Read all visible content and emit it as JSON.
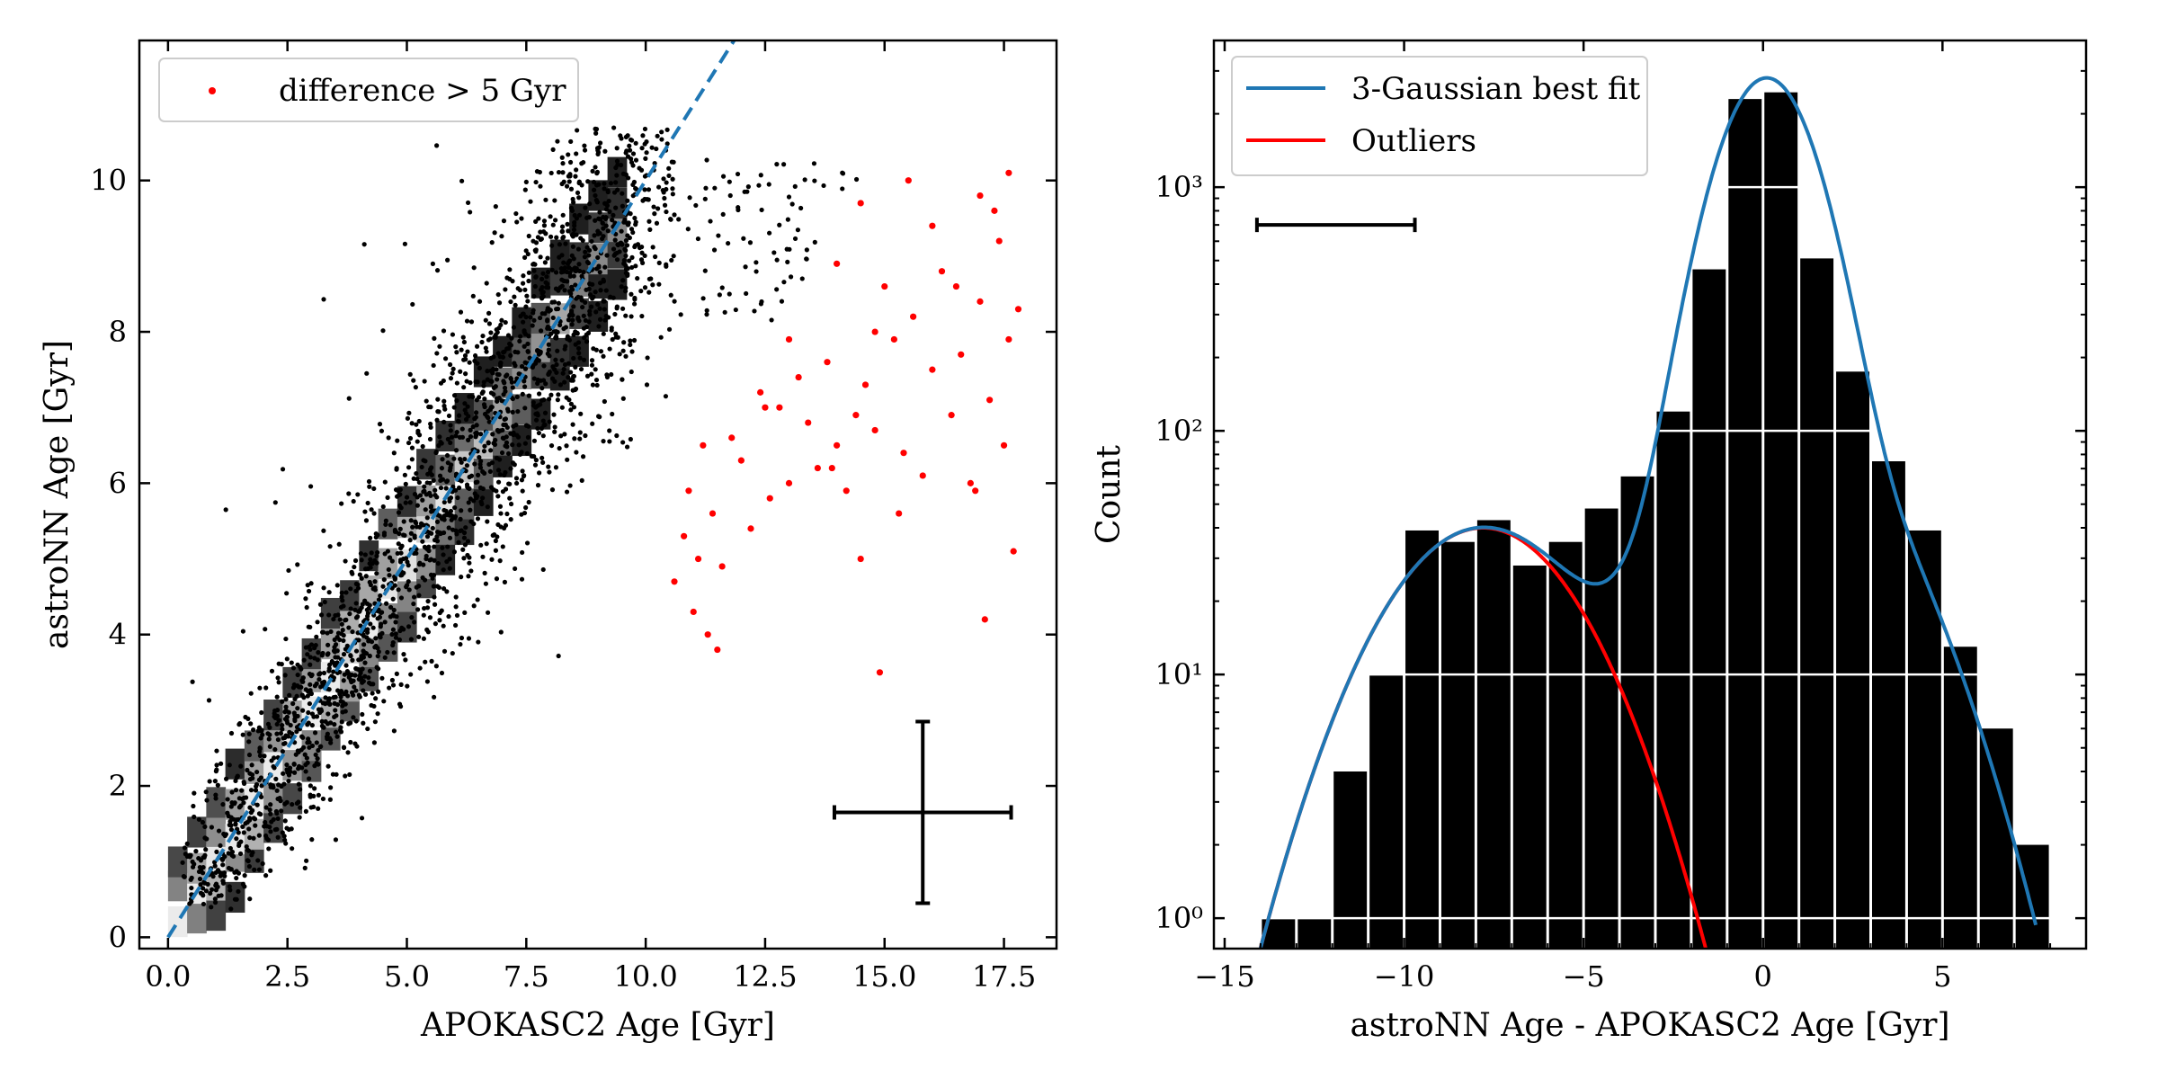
{
  "chart_data": [
    {
      "type": "scatter",
      "xlabel": "APOKASC2 Age [Gyr]",
      "ylabel": "astroNN Age [Gyr]",
      "xlim": [
        -0.6,
        18.6
      ],
      "ylim": [
        -0.15,
        11.85
      ],
      "xticks": [
        0,
        2.5,
        5,
        7.5,
        10,
        12.5,
        15,
        17.5
      ],
      "xtick_labels": [
        "0.0",
        "2.5",
        "5.0",
        "7.5",
        "10.0",
        "12.5",
        "15.0",
        "17.5"
      ],
      "yticks": [
        0,
        2,
        4,
        6,
        8,
        10
      ],
      "ytick_labels": [
        "0",
        "2",
        "4",
        "6",
        "8",
        "10"
      ],
      "grid": false,
      "legend": {
        "location": "upper left",
        "entries": [
          {
            "label": "difference > 5 Gyr",
            "color": "#ff0000",
            "marker": "dot"
          }
        ]
      },
      "one_to_one_line": {
        "style": "dashed",
        "color": "#1f77b4",
        "from": [
          0,
          0
        ],
        "to": [
          12,
          12
        ]
      },
      "density_histogram": {
        "color_scale": "grayscale",
        "bin_size": 0.4,
        "span": [
          0.2,
          9.8
        ]
      },
      "series": [
        {
          "name": "difference > 5 Gyr",
          "color": "#ff0000",
          "points": [
            [
              10.6,
              4.7
            ],
            [
              10.8,
              5.3
            ],
            [
              10.9,
              5.9
            ],
            [
              11.0,
              4.3
            ],
            [
              11.1,
              5.0
            ],
            [
              11.2,
              6.5
            ],
            [
              11.3,
              4.0
            ],
            [
              11.4,
              5.6
            ],
            [
              11.5,
              3.8
            ],
            [
              11.6,
              4.9
            ],
            [
              11.8,
              6.6
            ],
            [
              12.0,
              6.3
            ],
            [
              12.2,
              5.4
            ],
            [
              12.4,
              7.2
            ],
            [
              12.6,
              5.8
            ],
            [
              12.8,
              7.0
            ],
            [
              13.0,
              6.0
            ],
            [
              13.2,
              7.4
            ],
            [
              13.4,
              6.8
            ],
            [
              13.6,
              6.2
            ],
            [
              13.8,
              7.6
            ],
            [
              14.0,
              6.5
            ],
            [
              14.2,
              5.9
            ],
            [
              14.4,
              6.9
            ],
            [
              14.5,
              5.0
            ],
            [
              14.6,
              7.3
            ],
            [
              14.8,
              6.7
            ],
            [
              14.9,
              3.5
            ],
            [
              15.0,
              8.6
            ],
            [
              15.2,
              7.9
            ],
            [
              15.4,
              6.4
            ],
            [
              15.6,
              8.2
            ],
            [
              15.8,
              6.1
            ],
            [
              16.0,
              7.5
            ],
            [
              16.2,
              8.8
            ],
            [
              16.4,
              6.9
            ],
            [
              16.6,
              7.7
            ],
            [
              16.8,
              6.0
            ],
            [
              17.0,
              8.4
            ],
            [
              17.1,
              4.2
            ],
            [
              17.2,
              7.1
            ],
            [
              17.4,
              9.2
            ],
            [
              17.5,
              6.5
            ],
            [
              17.6,
              7.9
            ],
            [
              17.7,
              5.1
            ],
            [
              17.8,
              8.3
            ],
            [
              17.6,
              10.1
            ],
            [
              17.0,
              9.8
            ],
            [
              16.0,
              9.4
            ],
            [
              15.5,
              10.0
            ],
            [
              14.5,
              9.7
            ],
            [
              14.0,
              8.9
            ],
            [
              13.0,
              7.9
            ],
            [
              12.5,
              7.0
            ],
            [
              14.8,
              8.0
            ],
            [
              16.5,
              8.6
            ],
            [
              17.3,
              9.6
            ],
            [
              15.3,
              5.6
            ],
            [
              16.9,
              5.9
            ],
            [
              13.9,
              6.2
            ]
          ]
        }
      ],
      "error_cross": {
        "center": [
          15.8,
          1.65
        ],
        "x_error": 1.85,
        "y_error": 1.2
      }
    },
    {
      "type": "bar",
      "xlabel": "astroNN Age - APOKASC2 Age [Gyr]",
      "ylabel": "Count",
      "yscale": "log",
      "xlim": [
        -15.3,
        9.0
      ],
      "ylim": [
        0.75,
        4000
      ],
      "xticks": [
        -15,
        -10,
        -5,
        0,
        5
      ],
      "xtick_labels": [
        "−15",
        "−10",
        "−5",
        "0",
        "5"
      ],
      "ytick_labels": [
        "10⁰",
        "10¹",
        "10²",
        "10³"
      ],
      "grid": "horizontal (white, on bars)",
      "bin_width": 1.0,
      "categories": [
        -13.5,
        -12.5,
        -11.5,
        -10.5,
        -9.5,
        -8.5,
        -7.5,
        -6.5,
        -5.5,
        -4.5,
        -3.5,
        -2.5,
        -1.5,
        -0.5,
        0.5,
        1.5,
        2.5,
        3.5,
        4.5,
        5.5,
        6.5,
        7.5
      ],
      "values": [
        1,
        1,
        4,
        10,
        39,
        35,
        43,
        28,
        35,
        48,
        65,
        120,
        460,
        2300,
        2450,
        510,
        175,
        75,
        39,
        13,
        6,
        2
      ],
      "bar_color": "#000000",
      "legend": {
        "location": "upper left",
        "entries": [
          {
            "label": "3-Gaussian best fit",
            "color": "#1f77b4"
          },
          {
            "label": "Outliers",
            "color": "#ff0000"
          }
        ]
      },
      "fit_curves": [
        {
          "name": "3-Gaussian best fit",
          "color": "#1f77b4",
          "components": [
            {
              "amplitude": 2700,
              "mean": 0.1,
              "sigma": 1.1
            },
            {
              "amplitude": 110,
              "mean": 0.5,
              "sigma": 2.3
            },
            {
              "amplitude": 40,
              "mean": -7.8,
              "sigma": 2.2
            }
          ],
          "x_range": [
            -14.6,
            7.6
          ]
        },
        {
          "name": "Outliers",
          "color": "#ff0000",
          "components": [
            {
              "amplitude": 40,
              "mean": -7.8,
              "sigma": 2.2
            }
          ],
          "x_range": [
            -14.6,
            -0.5
          ]
        }
      ],
      "error_bar": {
        "x_start": -14.1,
        "x_end": -9.7,
        "y": 700
      }
    }
  ]
}
